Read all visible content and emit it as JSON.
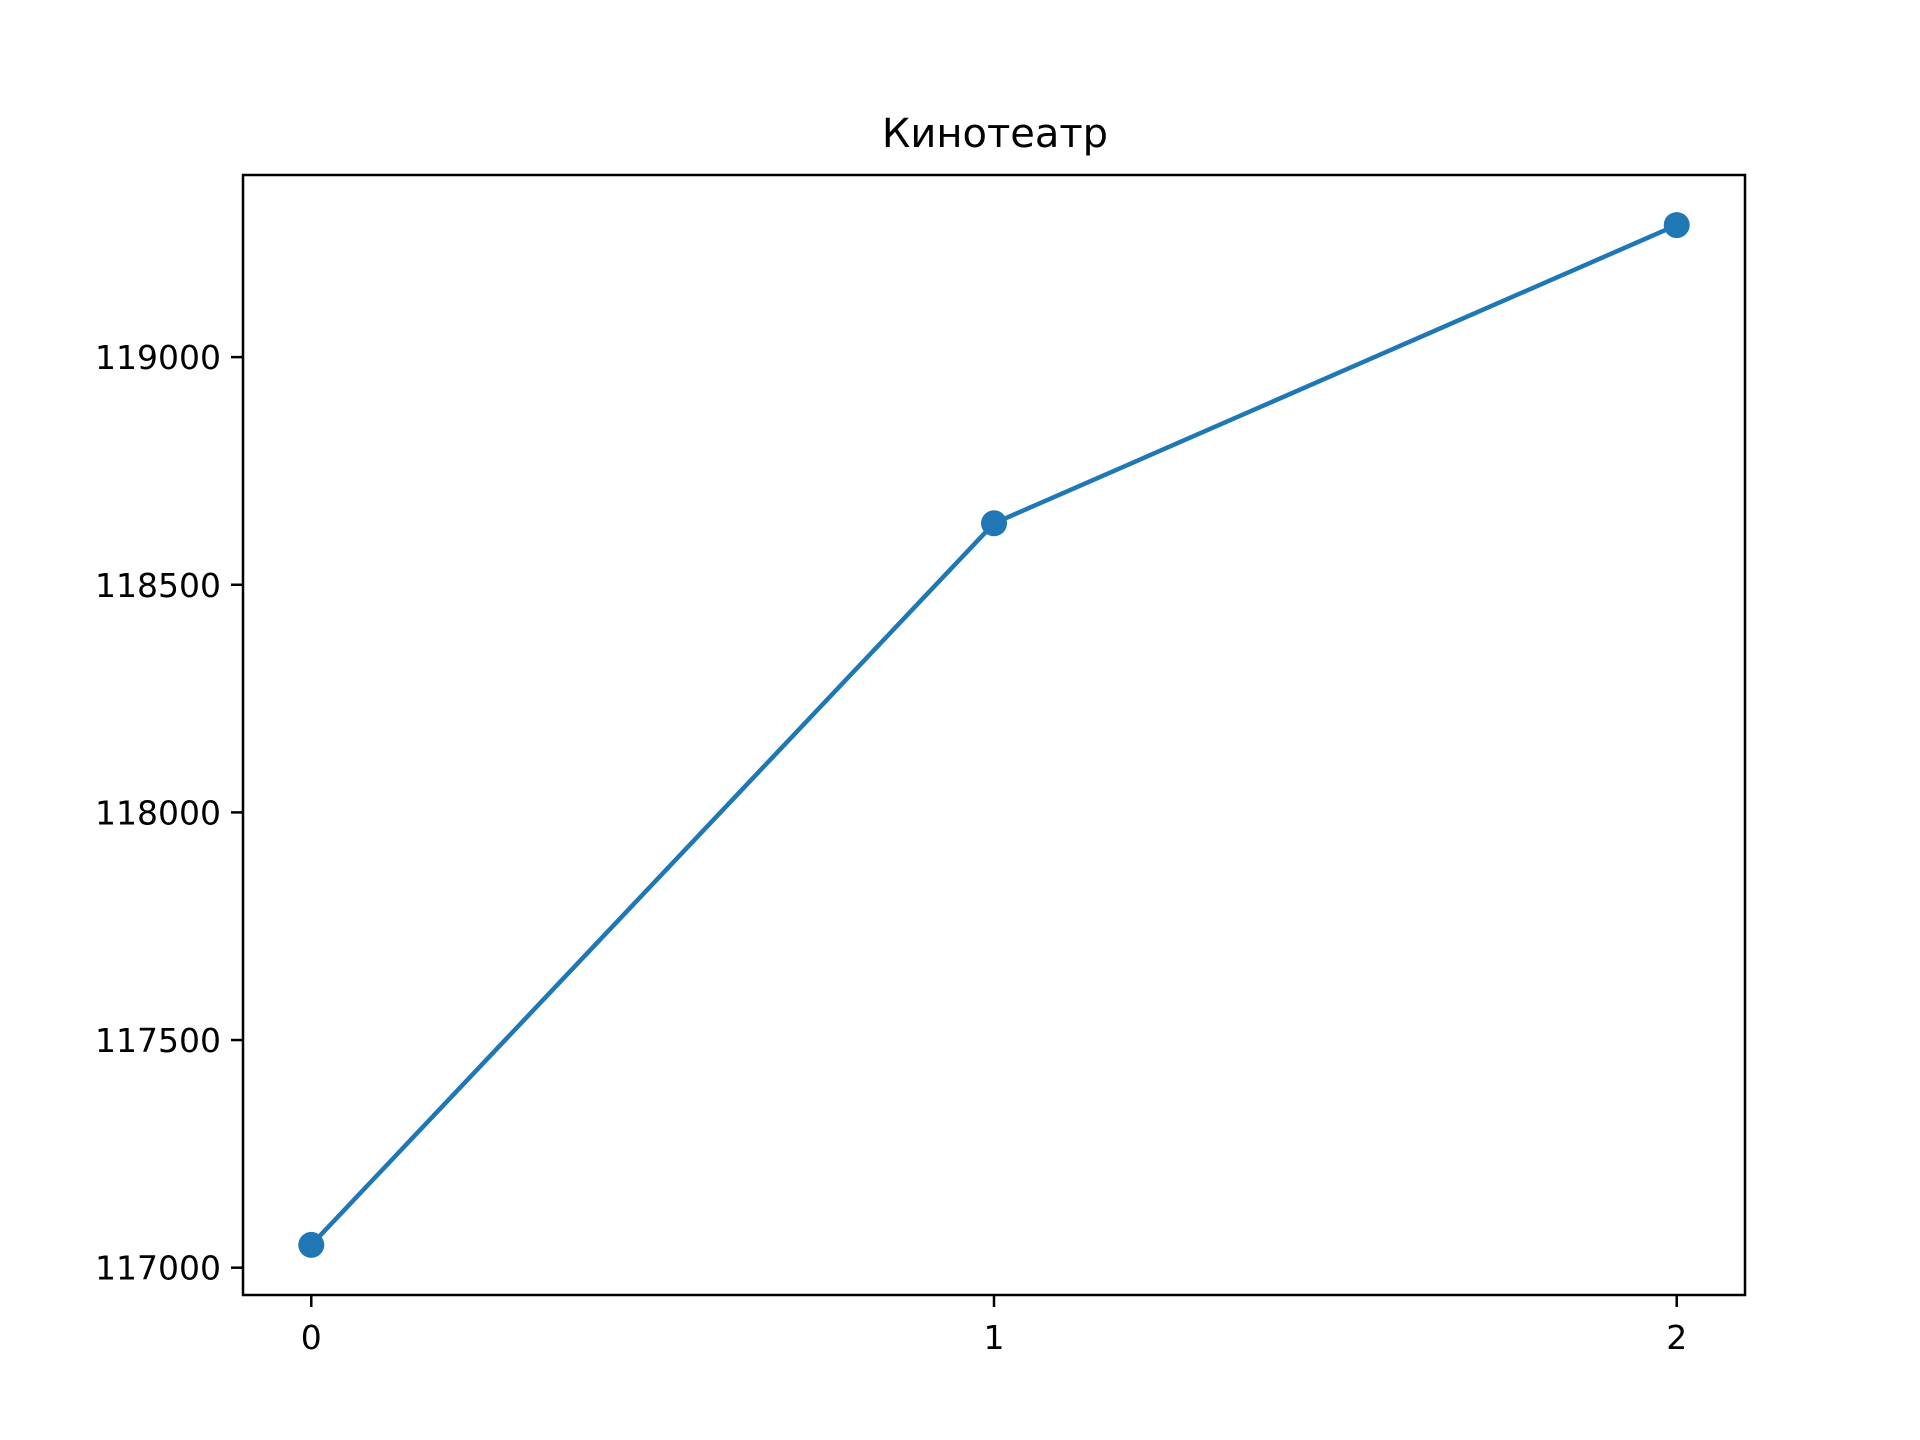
{
  "chart_data": {
    "type": "line",
    "title": "Кинотеатр",
    "xlabel": "",
    "ylabel": "",
    "x": [
      0,
      1,
      2
    ],
    "series": [
      {
        "values": [
          117050,
          118635,
          119290
        ]
      }
    ],
    "xticks": [
      "0",
      "1",
      "2"
    ],
    "yticks": [
      117000,
      117500,
      118000,
      118500,
      119000
    ],
    "ytick_labels": [
      "117000",
      "117500",
      "118000",
      "118500",
      "119000"
    ],
    "xlim": [
      -0.1,
      2.1
    ],
    "ylim": [
      116940,
      119400
    ],
    "grid": false,
    "markers": true,
    "colors": {
      "line": "#1f77b4",
      "axes": "#000000"
    }
  }
}
